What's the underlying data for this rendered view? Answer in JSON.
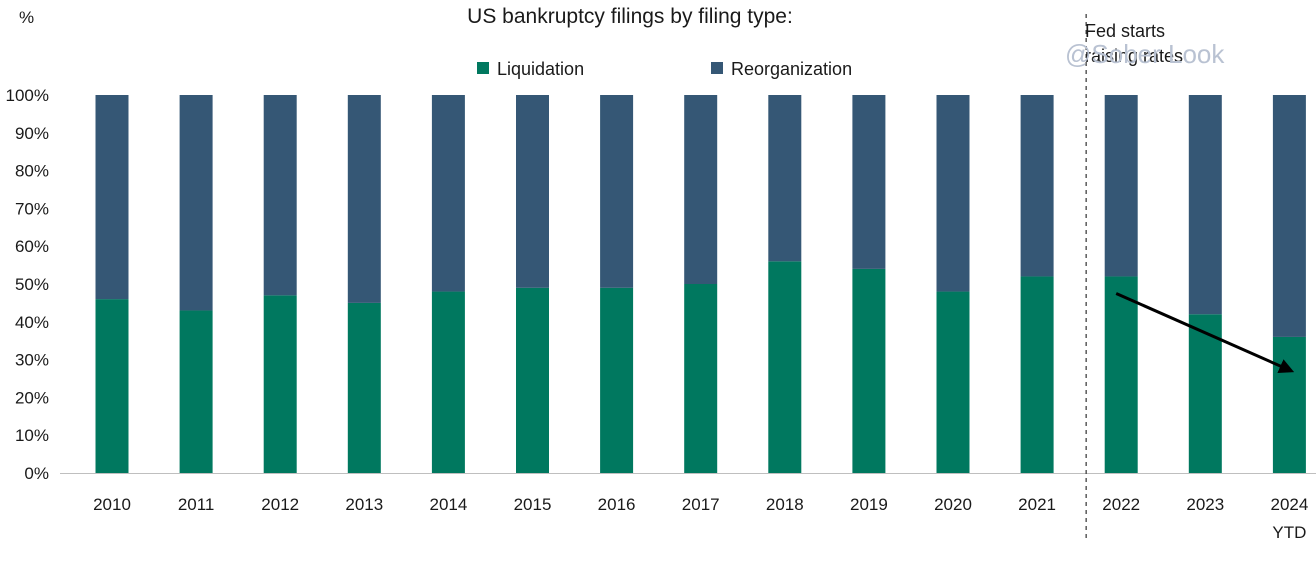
{
  "chart_data": {
    "type": "bar",
    "stacked": true,
    "percent": true,
    "title": "US bankruptcy filings by filing type:",
    "ylabel": "%",
    "ylim": [
      0,
      100
    ],
    "yticks": [
      "0%",
      "10%",
      "20%",
      "30%",
      "40%",
      "50%",
      "60%",
      "70%",
      "80%",
      "90%",
      "100%"
    ],
    "categories": [
      "2010",
      "2011",
      "2012",
      "2013",
      "2014",
      "2015",
      "2016",
      "2017",
      "2018",
      "2019",
      "2020",
      "2021",
      "2022",
      "2023",
      "2024"
    ],
    "category_sublabels": [
      "",
      "",
      "",
      "",
      "",
      "",
      "",
      "",
      "",
      "",
      "",
      "",
      "",
      "",
      "YTD"
    ],
    "series": [
      {
        "name": "Liquidation",
        "color": "#00785f",
        "values": [
          46,
          43,
          47,
          45,
          48,
          49,
          49,
          50,
          56,
          54,
          48,
          52,
          52,
          42,
          36
        ]
      },
      {
        "name": "Reorganization",
        "color": "#355775",
        "values": [
          54,
          57,
          53,
          55,
          52,
          51,
          51,
          50,
          44,
          46,
          52,
          48,
          48,
          58,
          64
        ]
      }
    ],
    "legend": "top",
    "grid": false,
    "annotations": [
      {
        "text": "Fed starts\nraising rates",
        "at_category": "2022"
      }
    ],
    "watermark": "@Sober Look",
    "arrow": {
      "from": {
        "category": "2022",
        "y": 47.5
      },
      "to": {
        "category": "2024",
        "y": 27
      }
    }
  }
}
